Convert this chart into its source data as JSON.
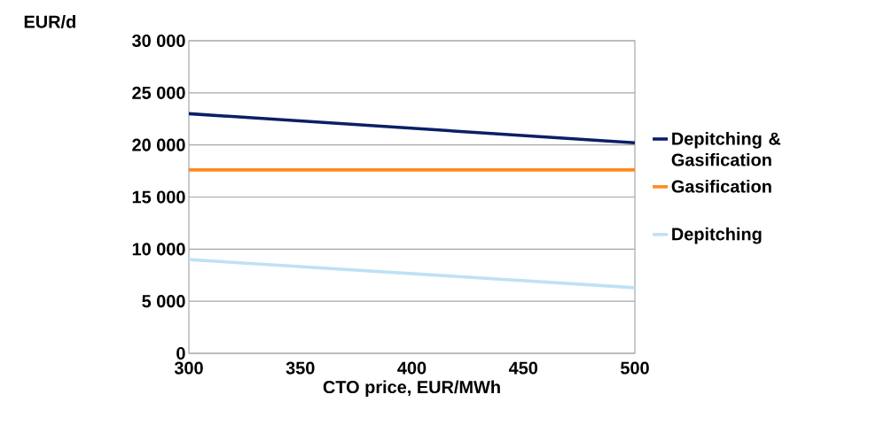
{
  "chart_data": {
    "type": "line",
    "ylabel": "EUR/d",
    "xlabel": "CTO price, EUR/MWh",
    "xlim": [
      300,
      500
    ],
    "xticks": [
      300,
      350,
      400,
      450,
      500
    ],
    "ylim": [
      0,
      30000
    ],
    "yticks": [
      {
        "value": 0,
        "label": "0"
      },
      {
        "value": 5000,
        "label": "5 000"
      },
      {
        "value": 10000,
        "label": "10 000"
      },
      {
        "value": 15000,
        "label": "15 000"
      },
      {
        "value": 20000,
        "label": "20 000"
      },
      {
        "value": 25000,
        "label": "25 000"
      },
      {
        "value": 30000,
        "label": "30 000"
      }
    ],
    "x": [
      300,
      500
    ],
    "series": [
      {
        "name": "Depitching & Gasification",
        "color": "#0b1f66",
        "values": [
          23000,
          20200
        ]
      },
      {
        "name": "Gasification",
        "color": "#ff8a1c",
        "values": [
          17600,
          17600
        ]
      },
      {
        "name": "Depitching",
        "color": "#bfe1f5",
        "values": [
          9000,
          6300
        ]
      }
    ],
    "grid": "y",
    "legend": "right",
    "marker": "none",
    "line_style": "solid"
  }
}
